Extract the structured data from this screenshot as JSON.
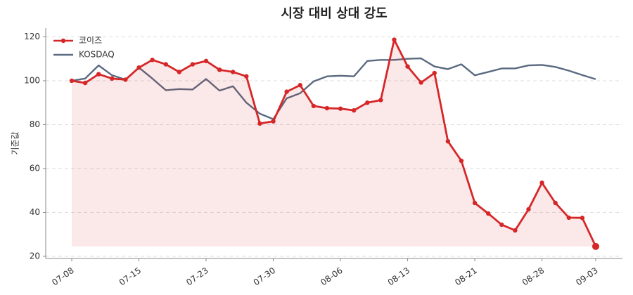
{
  "chart_data": {
    "type": "line",
    "title": "시장 대비 상대 강도",
    "y_label": "기준값",
    "categories": [
      "07-08",
      null,
      null,
      null,
      null,
      "07-15",
      null,
      null,
      null,
      null,
      "07-23",
      null,
      null,
      null,
      null,
      "07-30",
      null,
      null,
      null,
      null,
      "08-06",
      null,
      null,
      null,
      null,
      "08-13",
      null,
      null,
      null,
      null,
      "08-21",
      null,
      null,
      null,
      null,
      "08-28",
      null,
      null,
      null,
      "09-03"
    ],
    "series": [
      {
        "name": "코이즈",
        "color": "#d62728",
        "markers": true,
        "fill": true,
        "values": [
          100,
          99,
          103,
          101,
          100.5,
          106,
          109.5,
          107.5,
          104,
          107.5,
          109,
          105,
          104,
          102,
          80.5,
          81.5,
          95,
          98,
          88.5,
          87.5,
          87.3,
          86.5,
          90,
          91.2,
          118.7,
          106.5,
          99.2,
          103.5,
          72.4,
          63.5,
          44.3,
          39.5,
          34.4,
          31.8,
          41.4,
          53.5,
          44.3,
          37.6,
          37.5,
          24.5
        ]
      },
      {
        "name": "KOSDAQ",
        "color": "#5a6a80",
        "markers": false,
        "fill": false,
        "values": [
          100,
          101,
          107,
          102.5,
          100.5,
          106,
          101,
          95.7,
          96.2,
          96,
          100.8,
          95.5,
          97.5,
          90,
          85,
          82.5,
          92,
          94.3,
          99.7,
          102,
          102.3,
          102,
          109,
          109.5,
          109.5,
          110,
          110.2,
          106.5,
          105.3,
          107.5,
          102.5,
          104,
          105.6,
          105.6,
          107,
          107.2,
          106.3,
          104.6,
          102.6,
          100.7
        ]
      }
    ],
    "ylim": [
      19,
      124
    ],
    "yticks": [
      20,
      40,
      60,
      80,
      100,
      120
    ],
    "grid": true,
    "legend": "upper left"
  }
}
